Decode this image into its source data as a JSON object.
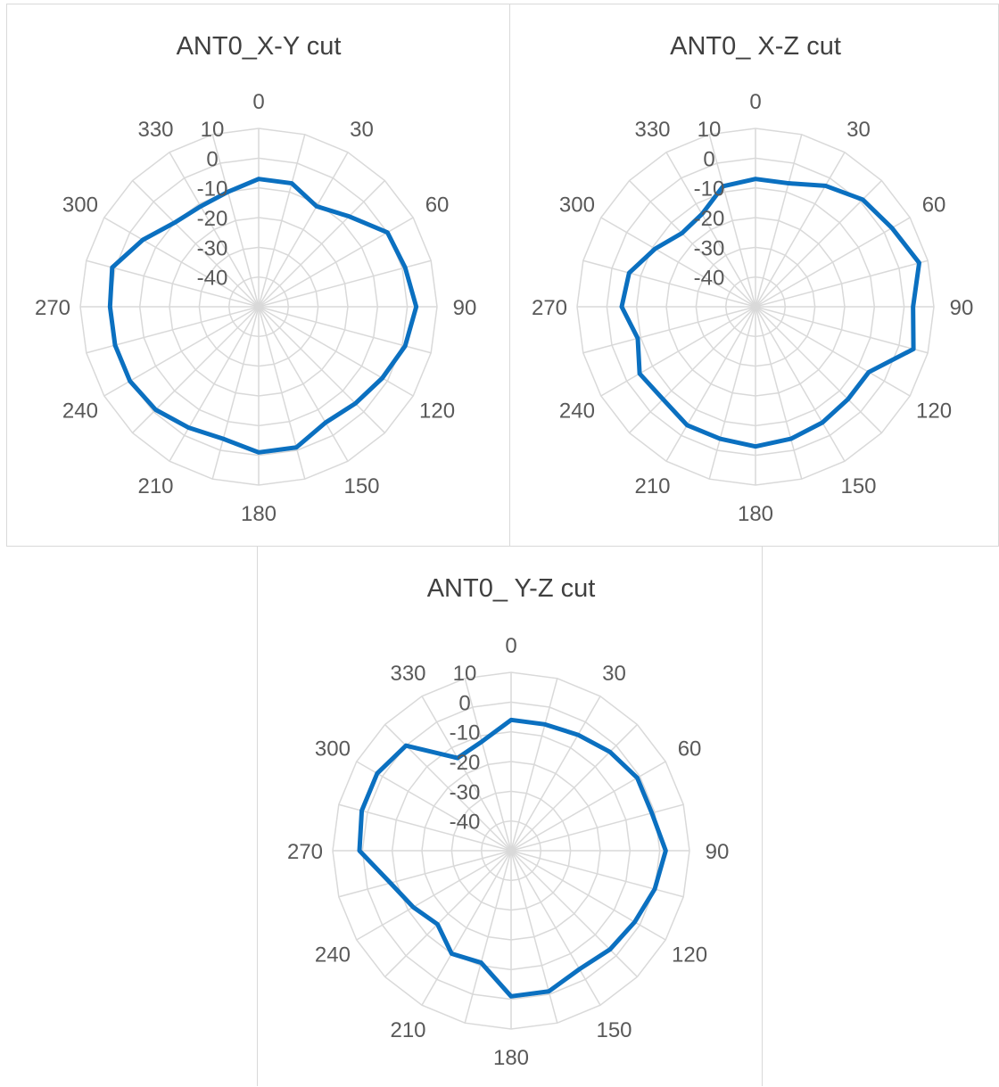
{
  "chart_data": [
    {
      "type": "radar",
      "title": "ANT0_X-Y cut",
      "angle_labels": [
        "0",
        "30",
        "60",
        "90",
        "120",
        "150",
        "180",
        "210",
        "240",
        "270",
        "300",
        "330"
      ],
      "r_ticks": [
        "10",
        "0",
        "-10",
        "-20",
        "-30",
        "-40"
      ],
      "rlim": [
        -50,
        10
      ],
      "grid": true,
      "color": "#0b70c0",
      "theta": [
        0,
        15,
        30,
        45,
        60,
        75,
        90,
        105,
        120,
        135,
        150,
        165,
        180,
        195,
        210,
        225,
        240,
        255,
        270,
        285,
        300,
        315,
        330,
        345
      ],
      "values": [
        -7,
        -7,
        -11,
        -7,
        0,
        1,
        3,
        1,
        -2,
        -4,
        -5,
        -1,
        -1,
        -4,
        -3,
        -1,
        0,
        0,
        0,
        1,
        -5,
        -10,
        -11,
        -10
      ]
    },
    {
      "type": "radar",
      "title": "ANT0_ X-Z cut",
      "angle_labels": [
        "0",
        "30",
        "60",
        "90",
        "120",
        "150",
        "180",
        "210",
        "240",
        "270",
        "300",
        "330"
      ],
      "r_ticks": [
        "10",
        "0",
        "-10",
        "-20",
        "-30",
        "-40"
      ],
      "rlim": [
        -50,
        10
      ],
      "grid": true,
      "color": "#0b70c0",
      "theta": [
        0,
        15,
        30,
        45,
        60,
        75,
        90,
        105,
        120,
        135,
        150,
        165,
        180,
        195,
        210,
        225,
        240,
        255,
        270,
        285,
        300,
        315,
        330,
        345
      ],
      "values": [
        -7,
        -7,
        -3,
        1,
        3,
        7,
        3,
        5,
        -6,
        -6,
        -5,
        -4,
        -3,
        -4,
        -4,
        -6,
        -5,
        -9,
        -5,
        -6,
        -11,
        -15,
        -14,
        -8
      ]
    },
    {
      "type": "radar",
      "title": "ANT0_ Y-Z cut",
      "angle_labels": [
        "0",
        "30",
        "60",
        "90",
        "120",
        "150",
        "180",
        "210",
        "240",
        "270",
        "300",
        "330"
      ],
      "r_ticks": [
        "10",
        "0",
        "-10",
        "-20",
        "-30",
        "-40"
      ],
      "rlim": [
        -50,
        10
      ],
      "grid": true,
      "color": "#0b70c0",
      "theta": [
        0,
        15,
        30,
        45,
        60,
        75,
        90,
        105,
        120,
        135,
        150,
        165,
        180,
        195,
        210,
        225,
        240,
        255,
        270,
        285,
        300,
        315,
        330,
        345
      ],
      "values": [
        -6,
        -6,
        -5,
        -3,
        -1,
        -1,
        2,
        0,
        -2,
        -3,
        -4,
        -1,
        -1,
        -11,
        -10,
        -15,
        -12,
        -8,
        1,
        2,
        2,
        0,
        -14,
        -12
      ]
    }
  ]
}
